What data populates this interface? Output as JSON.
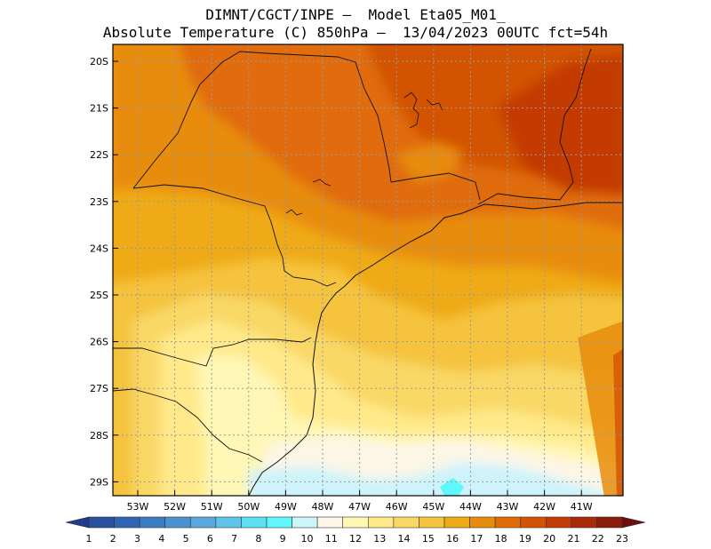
{
  "header": {
    "line1": "DIMNT/CGCT/INPE —  Model Eta05_M01_",
    "line2": "Absolute Temperature (C) 850hPa —  13/04/2023 00UTC fct=54h"
  },
  "axes": {
    "lat_labels": [
      "20S",
      "21S",
      "22S",
      "23S",
      "24S",
      "25S",
      "26S",
      "27S",
      "28S",
      "29S"
    ],
    "lon_labels": [
      "53W",
      "52W",
      "51W",
      "50W",
      "49W",
      "48W",
      "47W",
      "46W",
      "45W",
      "44W",
      "43W",
      "42W",
      "41W"
    ]
  },
  "colorbar": {
    "labels": [
      "1",
      "2",
      "3",
      "4",
      "5",
      "6",
      "7",
      "8",
      "9",
      "10",
      "11",
      "12",
      "13",
      "14",
      "15",
      "16",
      "17",
      "18",
      "19",
      "20",
      "21",
      "22",
      "23"
    ],
    "colors": [
      "#1f3c8c",
      "#27519f",
      "#2f66b3",
      "#3b7cc3",
      "#4a92d0",
      "#58a8dc",
      "#5fc4e8",
      "#5ee0f2",
      "#5ff7fb",
      "#cdf3fb",
      "#fdf6e6",
      "#fff7b5",
      "#ffe98a",
      "#f9d866",
      "#f5c33c",
      "#efaa17",
      "#e88c0c",
      "#e06c07",
      "#d25206",
      "#c33b05",
      "#a82a08",
      "#8a1c0a",
      "#6a0f0e"
    ]
  }
}
